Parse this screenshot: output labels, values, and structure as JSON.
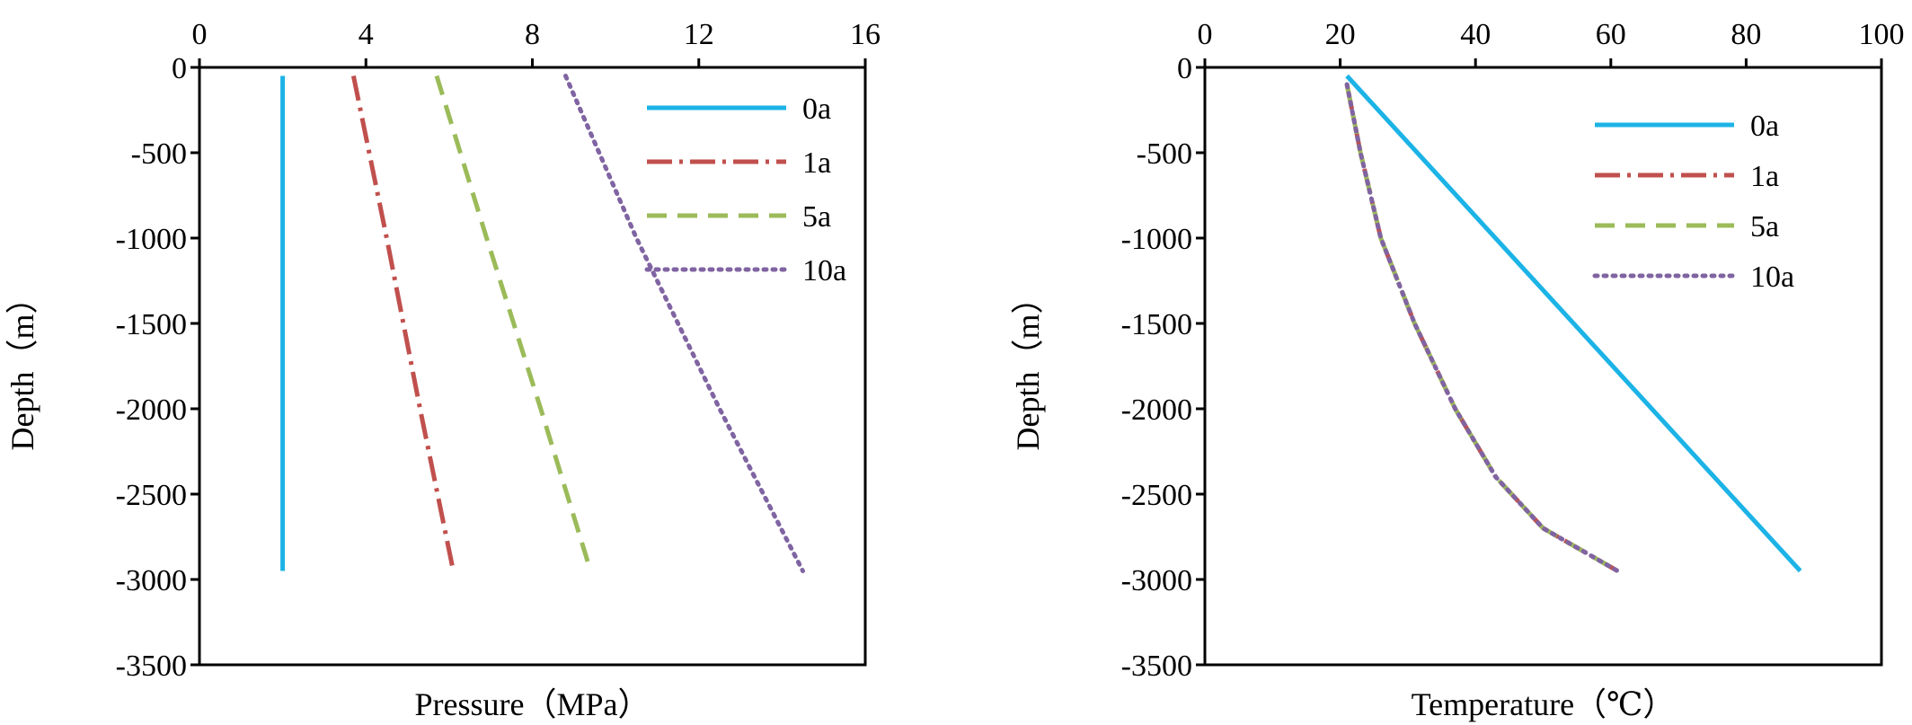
{
  "chart_data": [
    {
      "type": "line",
      "title": "",
      "xlabel": "Pressure（MPa）",
      "ylabel": "Depth（m）",
      "xlim": [
        0,
        16
      ],
      "ylim": [
        -3500,
        0
      ],
      "x_axis_position": "top",
      "x_ticks": [
        "0",
        "4",
        "8",
        "12",
        "16"
      ],
      "y_ticks": [
        "0",
        "-500",
        "-1000",
        "-1500",
        "-2000",
        "-2500",
        "-3000",
        "-3500"
      ],
      "grid": false,
      "legend_position": "top-right",
      "series": [
        {
          "name": "0a",
          "color": "#1CB3E6",
          "dash": "solid",
          "points": [
            [
              2.0,
              -50
            ],
            [
              2.0,
              -2950
            ]
          ]
        },
        {
          "name": "1a",
          "color": "#C0504D",
          "dash": "dashdot",
          "points": [
            [
              3.7,
              -50
            ],
            [
              4.5,
              -1000
            ],
            [
              5.3,
              -2000
            ],
            [
              6.1,
              -2950
            ]
          ]
        },
        {
          "name": "5a",
          "color": "#9BBB59",
          "dash": "dashed",
          "points": [
            [
              5.7,
              -50
            ],
            [
              6.9,
              -1000
            ],
            [
              8.2,
              -2000
            ],
            [
              9.4,
              -2950
            ]
          ]
        },
        {
          "name": "10a",
          "color": "#8064A2",
          "dash": "dotted",
          "points": [
            [
              8.8,
              -50
            ],
            [
              10.5,
              -1000
            ],
            [
              12.5,
              -2000
            ],
            [
              14.5,
              -2950
            ]
          ]
        }
      ]
    },
    {
      "type": "line",
      "title": "",
      "xlabel": "Temperature（℃）",
      "ylabel": "Depth（m）",
      "xlim": [
        0,
        100
      ],
      "ylim": [
        -3500,
        0
      ],
      "x_axis_position": "top",
      "x_ticks": [
        "0",
        "20",
        "40",
        "60",
        "80",
        "100"
      ],
      "y_ticks": [
        "0",
        "-500",
        "-1000",
        "-1500",
        "-2000",
        "-2500",
        "-3000",
        "-3500"
      ],
      "grid": false,
      "legend_position": "top-right",
      "series": [
        {
          "name": "0a",
          "color": "#1CB3E6",
          "dash": "solid",
          "points": [
            [
              21,
              -50
            ],
            [
              88,
              -2950
            ]
          ]
        },
        {
          "name": "1a",
          "color": "#C0504D",
          "dash": "dashdot",
          "points": [
            [
              21,
              -100
            ],
            [
              23,
              -500
            ],
            [
              26,
              -1000
            ],
            [
              31,
              -1500
            ],
            [
              37,
              -2000
            ],
            [
              43,
              -2400
            ],
            [
              50,
              -2700
            ],
            [
              61,
              -2950
            ]
          ]
        },
        {
          "name": "5a",
          "color": "#9BBB59",
          "dash": "dashed",
          "points": [
            [
              21,
              -100
            ],
            [
              23,
              -500
            ],
            [
              26,
              -1000
            ],
            [
              31,
              -1500
            ],
            [
              37,
              -2000
            ],
            [
              43,
              -2400
            ],
            [
              50,
              -2700
            ],
            [
              61,
              -2950
            ]
          ]
        },
        {
          "name": "10a",
          "color": "#8064A2",
          "dash": "dotted",
          "points": [
            [
              21,
              -100
            ],
            [
              23,
              -500
            ],
            [
              26,
              -1000
            ],
            [
              31,
              -1500
            ],
            [
              37,
              -2000
            ],
            [
              43,
              -2400
            ],
            [
              50,
              -2700
            ],
            [
              61,
              -2950
            ]
          ]
        }
      ]
    }
  ]
}
